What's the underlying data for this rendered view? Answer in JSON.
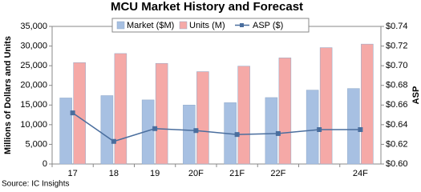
{
  "chart_data": {
    "type": "bar-line",
    "title": "MCU Market History and Forecast",
    "y_label": "Millions of Dollars and Units",
    "y2_label": "ASP",
    "source": "Source:  IC Insights",
    "categories": [
      "17",
      "18",
      "19",
      "20F",
      "21F",
      "22F",
      null,
      "24F"
    ],
    "series": [
      {
        "name": "Market ($M)",
        "type": "bar",
        "color": "#a7c0e2",
        "values": [
          16800,
          17400,
          16300,
          15000,
          15600,
          16900,
          18800,
          19200
        ]
      },
      {
        "name": "Units (M)",
        "type": "bar",
        "color": "#f5a9a7",
        "values": [
          25800,
          28100,
          25600,
          23500,
          24900,
          27000,
          29600,
          30500
        ]
      },
      {
        "name": "ASP ($)",
        "type": "line",
        "axis": "y2",
        "color": "#4a6e9e",
        "values": [
          0.652,
          0.623,
          0.636,
          0.634,
          0.63,
          0.631,
          0.635,
          0.635
        ]
      }
    ],
    "ylim": [
      0,
      35000
    ],
    "yticks": [
      0,
      {
        "value": 5000,
        "label": "5,000"
      },
      {
        "value": 10000,
        "label": "10,000"
      },
      {
        "value": 15000,
        "label": "15,000"
      },
      {
        "value": 20000,
        "label": "20,000"
      },
      {
        "value": 25000,
        "label": "25,000"
      },
      {
        "value": 30000,
        "label": "30,000"
      },
      {
        "value": 35000,
        "label": "35,000"
      }
    ],
    "y2lim": [
      0.6,
      0.74
    ],
    "y2ticks": [
      {
        "value": 0.6,
        "label": "$0.60"
      },
      {
        "value": 0.62,
        "label": "$0.62"
      },
      {
        "value": 0.64,
        "label": "$0.64"
      },
      {
        "value": 0.66,
        "label": "$0.66"
      },
      {
        "value": 0.68,
        "label": "$0.68"
      },
      {
        "value": 0.7,
        "label": "$0.70"
      },
      {
        "value": 0.72,
        "label": "$0.72"
      },
      {
        "value": 0.74,
        "label": "$0.74"
      }
    ],
    "legend": "top"
  }
}
